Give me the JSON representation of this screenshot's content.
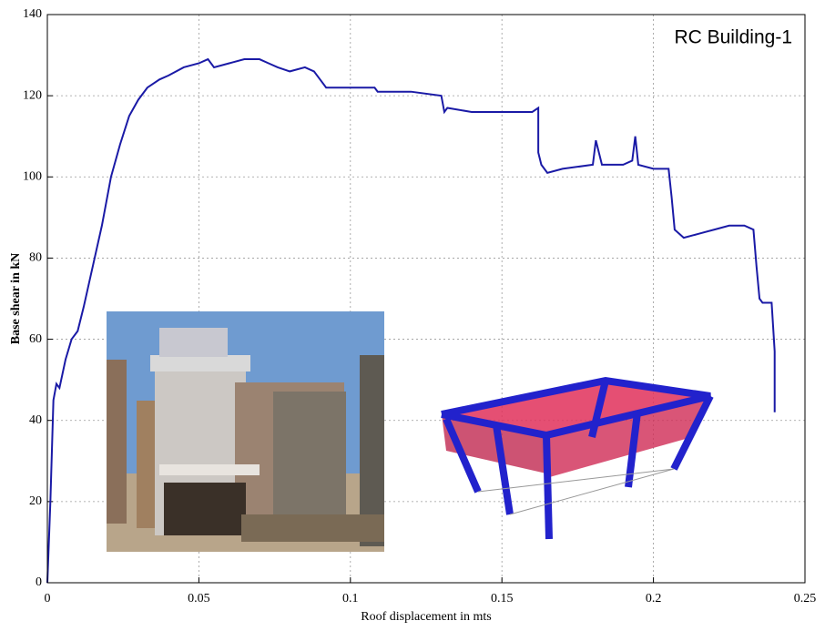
{
  "chart_data": {
    "type": "line",
    "title": "RC Building-1",
    "x_label": "Roof displacement in mts",
    "y_label": "Base shear in kN",
    "x": [
      0,
      0.001,
      0.002,
      0.003,
      0.004,
      0.006,
      0.008,
      0.01,
      0.012,
      0.015,
      0.018,
      0.021,
      0.024,
      0.027,
      0.03,
      0.033,
      0.037,
      0.04,
      0.045,
      0.05,
      0.053,
      0.055,
      0.06,
      0.065,
      0.07,
      0.073,
      0.076,
      0.08,
      0.085,
      0.088,
      0.09,
      0.092,
      0.1,
      0.108,
      0.109,
      0.12,
      0.13,
      0.131,
      0.132,
      0.14,
      0.16,
      0.162,
      0.162,
      0.163,
      0.165,
      0.17,
      0.18,
      0.181,
      0.183,
      0.19,
      0.193,
      0.194,
      0.195,
      0.2,
      0.205,
      0.206,
      0.207,
      0.21,
      0.215,
      0.22,
      0.225,
      0.23,
      0.233,
      0.234,
      0.235,
      0.236,
      0.239,
      0.24,
      0.24
    ],
    "values": [
      0,
      20,
      45,
      49,
      48,
      55,
      60,
      62,
      68,
      78,
      88,
      100,
      108,
      115,
      119,
      122,
      124,
      125,
      127,
      128,
      129,
      127,
      128,
      129,
      129,
      128,
      127,
      126,
      127,
      126,
      124,
      122,
      122,
      122,
      121,
      121,
      120,
      116,
      117,
      116,
      116,
      117,
      106,
      103,
      101,
      102,
      103,
      109,
      103,
      103,
      104,
      110,
      103,
      102,
      102,
      95,
      87,
      85,
      86,
      87,
      88,
      88,
      87,
      78,
      70,
      69,
      69,
      57,
      42
    ],
    "color": "#1a1aa6",
    "xlim": [
      0,
      0.25
    ],
    "xticks": [
      0,
      0.05,
      0.1,
      0.15,
      0.2,
      0.25
    ],
    "ylim": [
      0,
      140
    ],
    "yticks": [
      0,
      20,
      40,
      60,
      80,
      100,
      120,
      140
    ],
    "grid": true
  }
}
